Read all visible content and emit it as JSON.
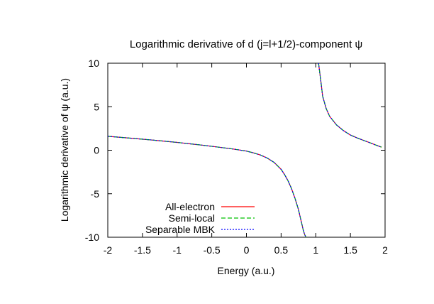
{
  "chart_data": {
    "type": "line",
    "title": "Logarithmic derivative of d (j=l+1/2)-component ψ",
    "xlabel": "Energy (a.u.)",
    "ylabel": "Logarithmic derivative of ψ (a.u.)",
    "xlim": [
      -2,
      2
    ],
    "ylim": [
      -10,
      10
    ],
    "xticks": [
      "-2",
      "-1.5",
      "-1",
      "-0.5",
      "0",
      "0.5",
      "1",
      "1.5",
      "2"
    ],
    "yticks": [
      "10",
      "5",
      "0",
      "-5",
      "-10"
    ],
    "grid": false,
    "legend_position": "bottom-left",
    "series": [
      {
        "name": "All-electron",
        "color": "#ff0000",
        "dash": "solid",
        "segments": [
          {
            "x": [
              -2.0,
              -1.8,
              -1.6,
              -1.4,
              -1.2,
              -1.0,
              -0.8,
              -0.6,
              -0.4,
              -0.2,
              0.0,
              0.1,
              0.2,
              0.3,
              0.4,
              0.5,
              0.55,
              0.6,
              0.65,
              0.7,
              0.75,
              0.78,
              0.8,
              0.82,
              0.84,
              0.86
            ],
            "y": [
              1.6,
              1.47,
              1.34,
              1.2,
              1.05,
              0.9,
              0.73,
              0.55,
              0.35,
              0.15,
              -0.1,
              -0.3,
              -0.55,
              -0.9,
              -1.4,
              -2.2,
              -2.8,
              -3.5,
              -4.4,
              -5.5,
              -6.8,
              -7.8,
              -8.5,
              -9.2,
              -9.7,
              -10.0
            ]
          },
          {
            "x": [
              1.04,
              1.06,
              1.08,
              1.1,
              1.15,
              1.2,
              1.3,
              1.4,
              1.5,
              1.6,
              1.7,
              1.8,
              1.9,
              1.95
            ],
            "y": [
              10.0,
              8.8,
              7.5,
              6.2,
              4.8,
              3.9,
              2.9,
              2.25,
              1.75,
              1.4,
              1.1,
              0.8,
              0.5,
              0.35
            ]
          }
        ]
      },
      {
        "name": "Semi-local",
        "color": "#00c000",
        "dash": "6,3",
        "segments": [
          {
            "x": [
              -2.0,
              -1.8,
              -1.6,
              -1.4,
              -1.2,
              -1.0,
              -0.8,
              -0.6,
              -0.4,
              -0.2,
              0.0,
              0.1,
              0.2,
              0.3,
              0.4,
              0.5,
              0.55,
              0.6,
              0.65,
              0.7,
              0.75,
              0.78,
              0.8,
              0.82,
              0.84,
              0.86
            ],
            "y": [
              1.6,
              1.47,
              1.34,
              1.2,
              1.05,
              0.9,
              0.73,
              0.55,
              0.35,
              0.15,
              -0.1,
              -0.3,
              -0.55,
              -0.9,
              -1.4,
              -2.2,
              -2.8,
              -3.5,
              -4.4,
              -5.5,
              -6.8,
              -7.8,
              -8.5,
              -9.2,
              -9.7,
              -10.0
            ]
          },
          {
            "x": [
              1.04,
              1.06,
              1.08,
              1.1,
              1.15,
              1.2,
              1.3,
              1.4,
              1.5,
              1.6,
              1.7,
              1.8,
              1.9,
              1.95
            ],
            "y": [
              10.0,
              8.8,
              7.5,
              6.2,
              4.8,
              3.9,
              2.9,
              2.25,
              1.75,
              1.4,
              1.1,
              0.8,
              0.5,
              0.35
            ]
          }
        ]
      },
      {
        "name": "Separable MBK",
        "color": "#0000ff",
        "dash": "2,2",
        "segments": [
          {
            "x": [
              -2.0,
              -1.8,
              -1.6,
              -1.4,
              -1.2,
              -1.0,
              -0.8,
              -0.6,
              -0.4,
              -0.2,
              0.0,
              0.1,
              0.2,
              0.3,
              0.4,
              0.5,
              0.55,
              0.6,
              0.65,
              0.7,
              0.75,
              0.78,
              0.8,
              0.82,
              0.84,
              0.86
            ],
            "y": [
              1.6,
              1.47,
              1.34,
              1.2,
              1.05,
              0.9,
              0.73,
              0.55,
              0.35,
              0.15,
              -0.1,
              -0.3,
              -0.55,
              -0.9,
              -1.4,
              -2.2,
              -2.8,
              -3.5,
              -4.4,
              -5.5,
              -6.8,
              -7.8,
              -8.5,
              -9.2,
              -9.7,
              -10.0
            ]
          },
          {
            "x": [
              1.04,
              1.06,
              1.08,
              1.1,
              1.15,
              1.2,
              1.3,
              1.4,
              1.5,
              1.6,
              1.7,
              1.8,
              1.9,
              1.95
            ],
            "y": [
              10.0,
              8.8,
              7.5,
              6.2,
              4.8,
              3.9,
              2.9,
              2.25,
              1.75,
              1.4,
              1.1,
              0.8,
              0.5,
              0.35
            ]
          }
        ]
      }
    ]
  }
}
